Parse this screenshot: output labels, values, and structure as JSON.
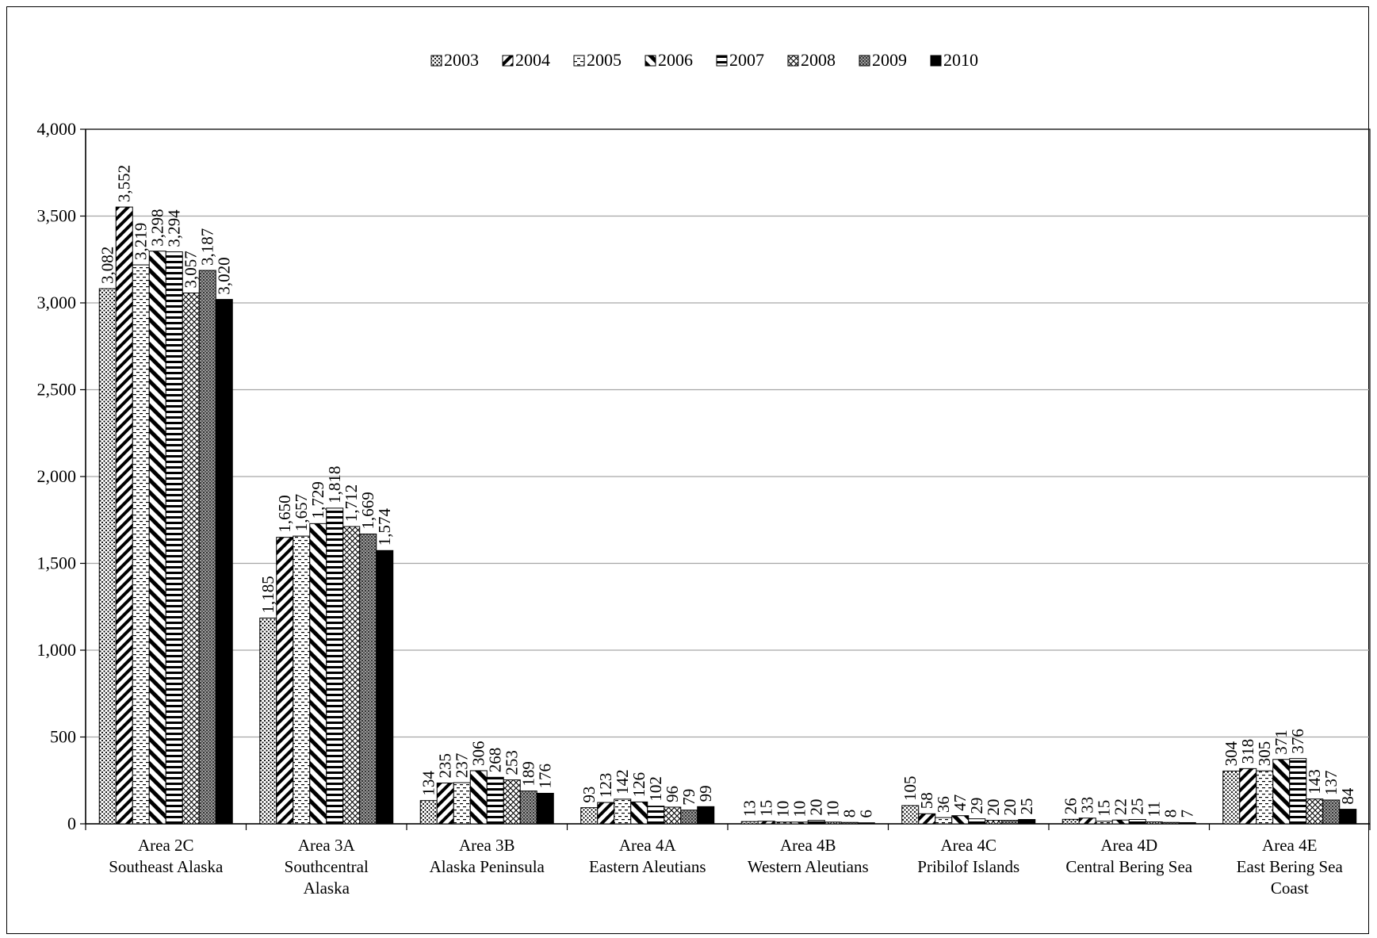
{
  "chart_data": {
    "type": "bar",
    "title": "",
    "xlabel": "",
    "ylabel": "",
    "ylim": [
      0,
      4000
    ],
    "ytick_step": 500,
    "yticks": [
      "0",
      "500",
      "1,000",
      "1,500",
      "2,000",
      "2,500",
      "3,000",
      "3,500",
      "4,000"
    ],
    "grid": true,
    "legend_position": "top-center",
    "categories": [
      [
        "Area 2C",
        "Southeast Alaska"
      ],
      [
        "Area 3A",
        "Southcentral",
        "Alaska"
      ],
      [
        "Area 3B",
        "Alaska Peninsula"
      ],
      [
        "Area 4A",
        "Eastern Aleutians"
      ],
      [
        "Area 4B",
        "Western Aleutians"
      ],
      [
        "Area 4C",
        "Pribilof Islands"
      ],
      [
        "Area 4D",
        "Central Bering Sea"
      ],
      [
        "Area 4E",
        "East Bering Sea",
        "Coast"
      ]
    ],
    "series": [
      {
        "name": "2003",
        "pattern": "dots",
        "values": [
          3082,
          1185,
          134,
          93,
          13,
          105,
          26,
          304
        ],
        "labels": [
          "3,082",
          "1,185",
          "134",
          "93",
          "13",
          "105",
          "26",
          "304"
        ]
      },
      {
        "name": "2004",
        "pattern": "diagonal",
        "values": [
          3552,
          1650,
          235,
          123,
          15,
          58,
          33,
          318
        ],
        "labels": [
          "3,552",
          "1,650",
          "235",
          "123",
          "15",
          "58",
          "33",
          "318"
        ]
      },
      {
        "name": "2005",
        "pattern": "dashes",
        "values": [
          3219,
          1657,
          237,
          142,
          10,
          36,
          15,
          305
        ],
        "labels": [
          "3,219",
          "1,657",
          "237",
          "142",
          "10",
          "36",
          "15",
          "305"
        ]
      },
      {
        "name": "2006",
        "pattern": "back-diagonal",
        "values": [
          3298,
          1729,
          306,
          126,
          10,
          47,
          22,
          371
        ],
        "labels": [
          "3,298",
          "1,729",
          "306",
          "126",
          "10",
          "47",
          "22",
          "371"
        ]
      },
      {
        "name": "2007",
        "pattern": "horizontal",
        "values": [
          3294,
          1818,
          268,
          102,
          20,
          29,
          25,
          376
        ],
        "labels": [
          "3,294",
          "1,818",
          "268",
          "102",
          "20",
          "29",
          "25",
          "376"
        ]
      },
      {
        "name": "2008",
        "pattern": "crosshatch",
        "values": [
          3057,
          1712,
          253,
          96,
          10,
          20,
          11,
          143
        ],
        "labels": [
          "3,057",
          "1,712",
          "253",
          "96",
          "10",
          "20",
          "11",
          "143"
        ]
      },
      {
        "name": "2009",
        "pattern": "grid-dark",
        "values": [
          3187,
          1669,
          189,
          79,
          8,
          20,
          8,
          137
        ],
        "labels": [
          "3,187",
          "1,669",
          "189",
          "79",
          "8",
          "20",
          "8",
          "137"
        ]
      },
      {
        "name": "2010",
        "pattern": "solid",
        "values": [
          3020,
          1574,
          176,
          99,
          6,
          25,
          7,
          84
        ],
        "labels": [
          "3,020",
          "1,574",
          "176",
          "99",
          "6",
          "25",
          "7",
          "84"
        ]
      }
    ]
  }
}
